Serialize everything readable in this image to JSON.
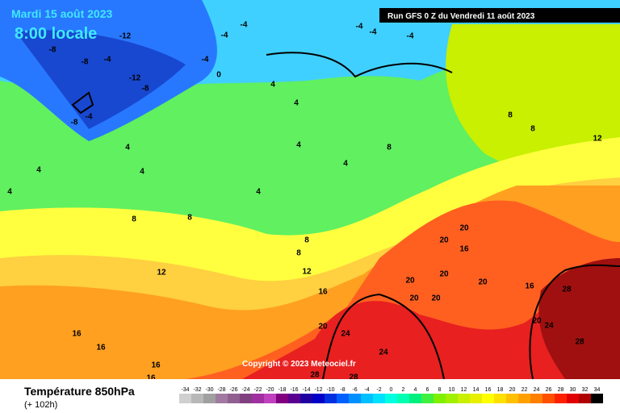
{
  "header": {
    "date": "Mardi 15 août 2023",
    "time": "8:00 locale",
    "run": "Run GFS 0 Z du Vendredi 11 août 2023"
  },
  "copyright": "Copyright © 2023 Meteociel.fr",
  "legend": {
    "title": "Température 850hPa",
    "subtitle": "(+ 102h)",
    "ticks": [
      -34,
      -32,
      -30,
      -28,
      -26,
      -24,
      -22,
      -20,
      -18,
      -16,
      -14,
      -12,
      -10,
      -8,
      -6,
      -4,
      -2,
      0,
      2,
      4,
      6,
      8,
      10,
      12,
      14,
      16,
      18,
      20,
      22,
      24,
      26,
      28,
      30,
      32,
      34
    ],
    "colors": [
      "#d0d0d0",
      "#b8b8b8",
      "#a0a0a0",
      "#a07aa0",
      "#906090",
      "#804080",
      "#a030a0",
      "#c040c0",
      "#800080",
      "#5a0090",
      "#2000a0",
      "#0000c8",
      "#0030e0",
      "#0060ff",
      "#0090ff",
      "#00c0ff",
      "#00e0ff",
      "#00ffe0",
      "#00ffb0",
      "#00f080",
      "#40f040",
      "#80f000",
      "#a0f000",
      "#c8f000",
      "#e8f000",
      "#ffff00",
      "#ffe000",
      "#ffc000",
      "#ffa000",
      "#ff8000",
      "#ff5000",
      "#ff2000",
      "#e00000",
      "#b00000",
      "#000000"
    ]
  },
  "contour_labels": [
    -12,
    -8,
    -8,
    -4,
    -12,
    -8,
    -8,
    -4,
    -4,
    -4,
    0,
    -4,
    -4,
    -4,
    -4,
    4,
    4,
    4,
    4,
    4,
    4,
    4,
    4,
    4,
    8,
    8,
    8,
    8,
    8,
    8,
    8,
    12,
    12,
    12,
    16,
    16,
    16,
    16,
    16,
    16,
    16,
    20,
    20,
    20,
    20,
    20,
    20,
    20,
    20,
    20,
    24,
    24,
    24,
    28,
    28,
    28,
    28
  ]
}
